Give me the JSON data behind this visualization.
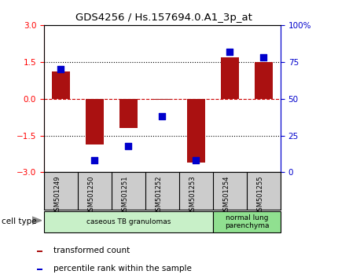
{
  "title": "GDS4256 / Hs.157694.0.A1_3p_at",
  "samples": [
    "GSM501249",
    "GSM501250",
    "GSM501251",
    "GSM501252",
    "GSM501253",
    "GSM501254",
    "GSM501255"
  ],
  "transformed_count": [
    1.1,
    -1.85,
    -1.2,
    -0.05,
    -2.6,
    1.7,
    1.5
  ],
  "percentile_rank": [
    70,
    8,
    18,
    38,
    8,
    82,
    78
  ],
  "bar_color": "#aa1111",
  "dot_color": "#0000cc",
  "ylim_left": [
    -3,
    3
  ],
  "ylim_right": [
    0,
    100
  ],
  "yticks_left": [
    -3,
    -1.5,
    0,
    1.5,
    3
  ],
  "yticks_right": [
    0,
    25,
    50,
    75,
    100
  ],
  "ytick_labels_right": [
    "0",
    "25",
    "50",
    "75",
    "100%"
  ],
  "hline_dotted": [
    -1.5,
    1.5
  ],
  "hline_dashed_zero": 0,
  "zero_line_color": "#cc0000",
  "cell_type_groups": [
    {
      "label": "caseous TB granulomas",
      "start": 0,
      "end": 5,
      "color": "#c8f0c8"
    },
    {
      "label": "normal lung\nparenchyma",
      "start": 5,
      "end": 7,
      "color": "#90e090"
    }
  ],
  "sample_box_color": "#cccccc",
  "cell_type_label": "cell type",
  "legend_items": [
    {
      "color": "#aa1111",
      "label": "transformed count"
    },
    {
      "color": "#0000cc",
      "label": "percentile rank within the sample"
    }
  ],
  "background_color": "#ffffff",
  "bar_width": 0.55,
  "dot_size": 35
}
